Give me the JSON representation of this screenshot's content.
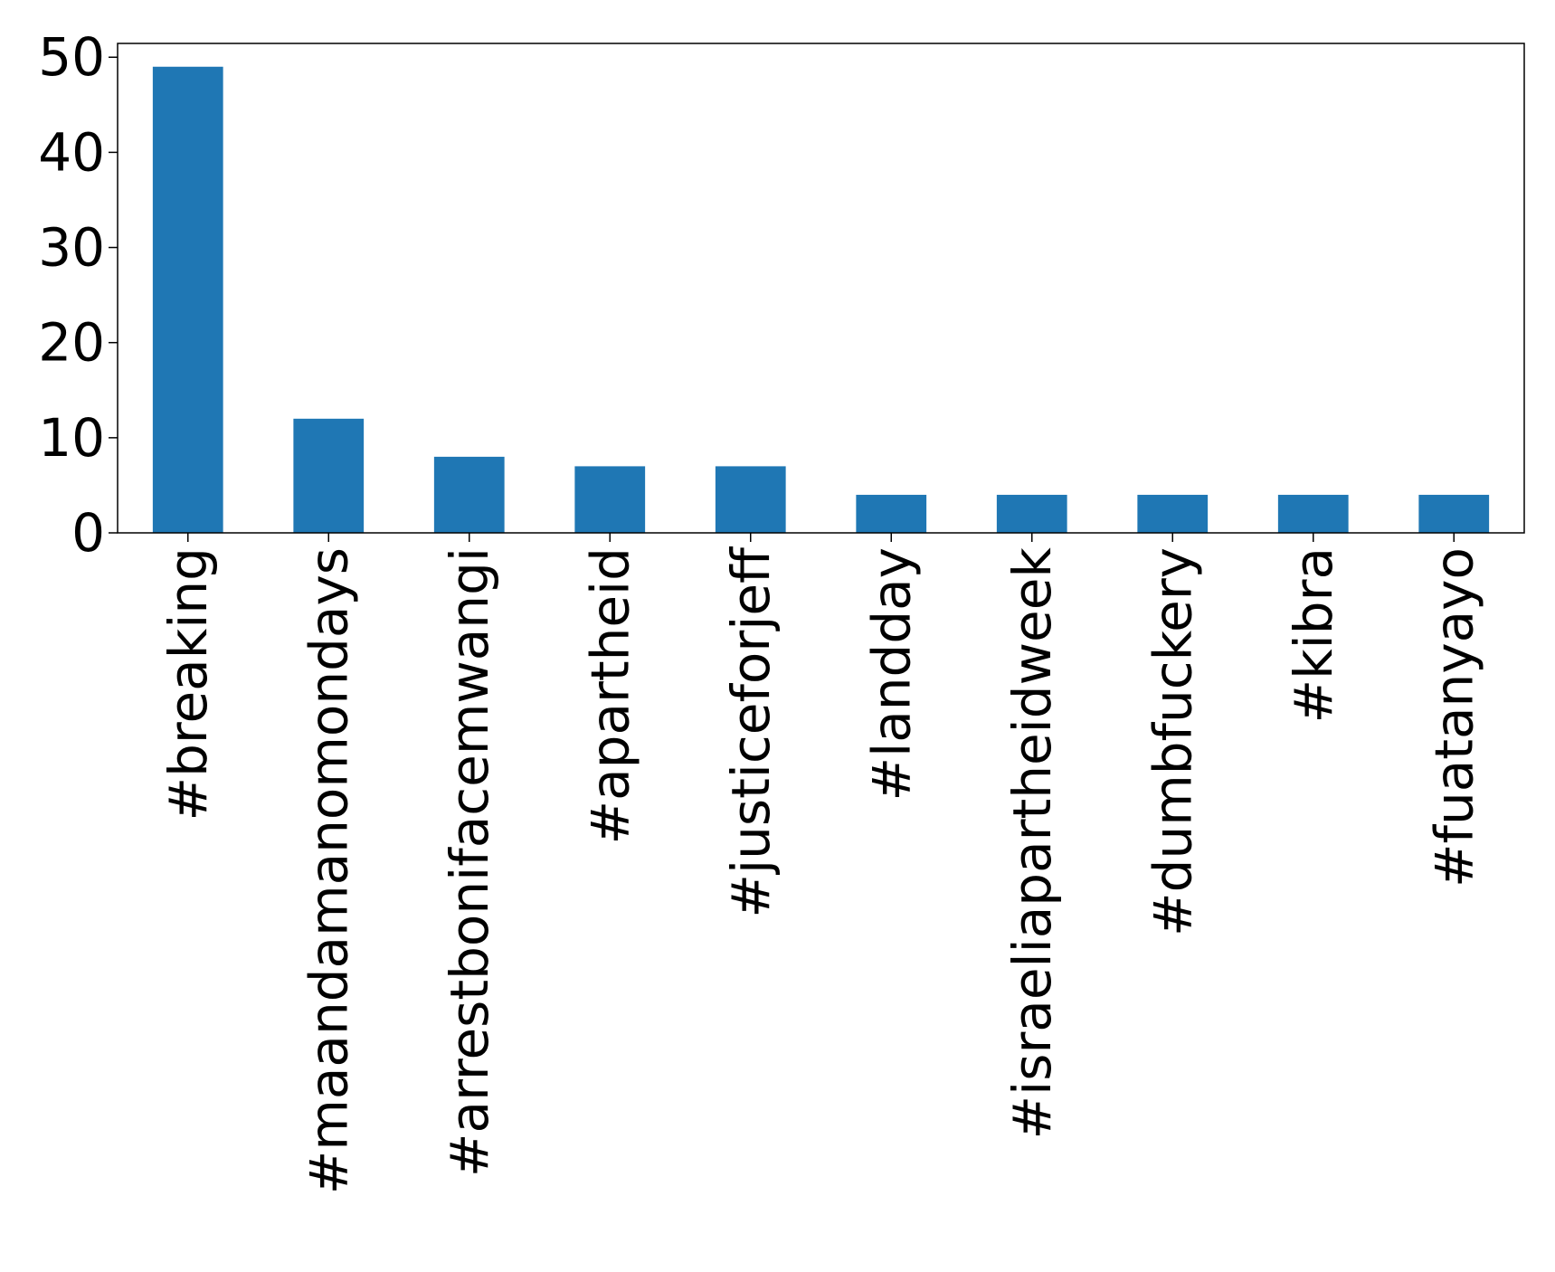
{
  "colors": {
    "bar": "#1f77b4",
    "axis": "#000000",
    "background": "#ffffff"
  },
  "chart_data": {
    "type": "bar",
    "title": "",
    "xlabel": "",
    "ylabel": "",
    "categories": [
      "#breaking",
      "#maandamanomondays",
      "#arrestbonifacemwangi",
      "#apartheid",
      "#justiceforjeff",
      "#landday",
      "#israeliapartheidweek",
      "#dumbfuckery",
      "#kibra",
      "#fuatanyayo"
    ],
    "values": [
      49,
      12,
      8,
      7,
      7,
      4,
      4,
      4,
      4,
      4
    ],
    "ylim": [
      0,
      51.45
    ],
    "yticks": [
      0,
      10,
      20,
      30,
      40,
      50
    ],
    "grid": false,
    "legend": "none"
  }
}
